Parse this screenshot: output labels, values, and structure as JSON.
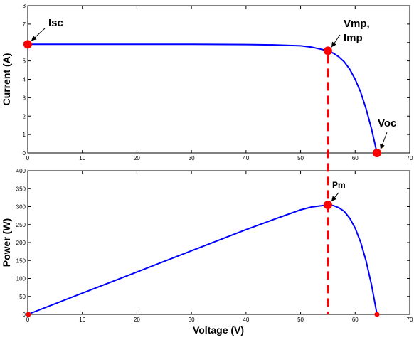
{
  "chart_data": [
    {
      "type": "line",
      "ylabel": "Current (A)",
      "xlabel": "",
      "xlim": [
        0,
        70
      ],
      "ylim": [
        0,
        8
      ],
      "x_ticks": [
        "0",
        "10",
        "20",
        "30",
        "40",
        "50",
        "60",
        "70"
      ],
      "y_ticks": [
        "0",
        "1",
        "2",
        "3",
        "4",
        "5",
        "6",
        "7",
        "8"
      ],
      "grid": false,
      "line_color": "#0000ff",
      "marker_color": "#ff0000",
      "series": [
        {
          "x": [
            0,
            10,
            20,
            30,
            40,
            45,
            50,
            52,
            54,
            55,
            56,
            57,
            58,
            59,
            60,
            61,
            62,
            63,
            64
          ],
          "y": [
            5.9,
            5.9,
            5.9,
            5.9,
            5.89,
            5.87,
            5.82,
            5.75,
            5.62,
            5.55,
            5.42,
            5.22,
            4.95,
            4.55,
            4.0,
            3.3,
            2.4,
            1.3,
            0.0
          ]
        }
      ],
      "points": [
        {
          "label": "Isc",
          "x": 0,
          "y": 5.9
        },
        {
          "label": "Vmp,",
          "label2": "Imp",
          "x": 55,
          "y": 5.55
        },
        {
          "label": "Voc",
          "x": 64,
          "y": 0
        }
      ]
    },
    {
      "type": "line",
      "ylabel": "Power (W)",
      "xlabel": "Voltage (V)",
      "xlim": [
        0,
        70
      ],
      "ylim": [
        0,
        400
      ],
      "x_ticks": [
        "0",
        "10",
        "20",
        "30",
        "40",
        "50",
        "60",
        "70"
      ],
      "y_ticks": [
        "0",
        "50",
        "100",
        "150",
        "200",
        "250",
        "300",
        "350",
        "400"
      ],
      "grid": false,
      "line_color": "#0000ff",
      "marker_color": "#ff0000",
      "series": [
        {
          "x": [
            0,
            10,
            20,
            30,
            40,
            45,
            50,
            52,
            54,
            55,
            56,
            57,
            58,
            59,
            60,
            61,
            62,
            63,
            64
          ],
          "y": [
            0,
            59,
            118,
            177,
            236,
            264,
            291,
            299,
            303,
            305,
            303,
            297,
            287,
            268,
            240,
            201,
            149,
            82,
            0
          ]
        }
      ],
      "points": [
        {
          "label": "Pm",
          "x": 55,
          "y": 305
        },
        {
          "label": "",
          "x": 0,
          "y": 0
        },
        {
          "label": "",
          "x": 64,
          "y": 0
        }
      ]
    }
  ]
}
